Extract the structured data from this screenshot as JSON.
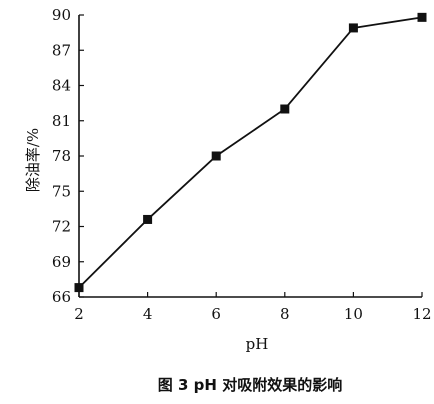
{
  "chart_data": {
    "type": "line",
    "xlabel": "pH",
    "ylabel": "除油率/%",
    "caption": "图 3   pH 对吸附效果的影响",
    "x": [
      2,
      4,
      6,
      8,
      10,
      12
    ],
    "y": [
      66.8,
      72.6,
      78.0,
      82.0,
      88.9,
      89.8
    ],
    "xlim": [
      2,
      12
    ],
    "ylim": [
      66,
      90
    ],
    "xticks": [
      "2",
      "4",
      "6",
      "8",
      "10",
      "12"
    ],
    "yticks": [
      "66",
      "69",
      "72",
      "75",
      "78",
      "81",
      "84",
      "87",
      "90"
    ],
    "marker": "square",
    "grid": false,
    "line_color": "#111111"
  }
}
